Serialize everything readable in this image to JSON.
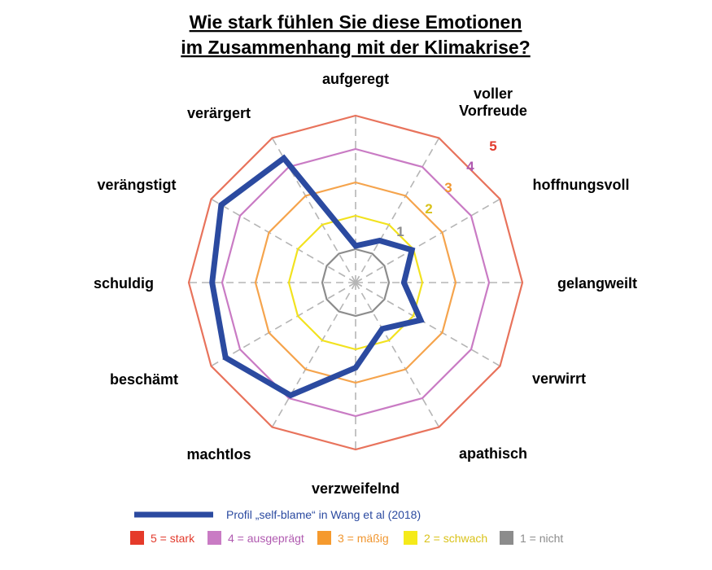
{
  "chart_data": {
    "type": "radar",
    "title_lines": [
      "Wie stark fühlen Sie diese Emotionen",
      "im Zusammenhang mit der Klimakrise?"
    ],
    "axes": [
      "aufgeregt",
      "voller Vorfreude",
      "hoffnungsvoll",
      "gelangweilt",
      "verwirrt",
      "apathisch",
      "verzweifelnd",
      "machtlos",
      "beschämt",
      "schuldig",
      "verängstigt",
      "verärgert"
    ],
    "scale": {
      "min": 0,
      "max": 5
    },
    "levels": [
      {
        "value": 1,
        "label": "1",
        "legend": "1 = nicht",
        "color": "#8c8c8c"
      },
      {
        "value": 2,
        "label": "2",
        "legend": "2 = schwach",
        "color": "#f2e21f"
      },
      {
        "value": 3,
        "label": "3",
        "legend": "3 = mäßig",
        "color": "#f5a44d"
      },
      {
        "value": 4,
        "label": "4",
        "legend": "4 = ausgeprägt",
        "color": "#c97bc4"
      },
      {
        "value": 5,
        "label": "5",
        "legend": "5 = stark",
        "color": "#e8735c"
      }
    ],
    "level_label_colors": {
      "1": "#8c8c8c",
      "2": "#d9c21a",
      "3": "#f0962f",
      "4": "#b05ab0",
      "5": "#e23a2c"
    },
    "legend_swatch_colors": {
      "1": "#8c8c8c",
      "2": "#f5ea1a",
      "3": "#f59a2e",
      "4": "#c97bc4",
      "5": "#e53a2a"
    },
    "series": [
      {
        "name": "Profil „self-blame“ in Wang et al (2018)",
        "color": "#2b4aa0",
        "values": [
          1.1,
          1.45,
          1.95,
          1.45,
          2.25,
          1.6,
          2.55,
          3.9,
          4.5,
          4.3,
          4.65,
          4.3
        ]
      }
    ]
  }
}
